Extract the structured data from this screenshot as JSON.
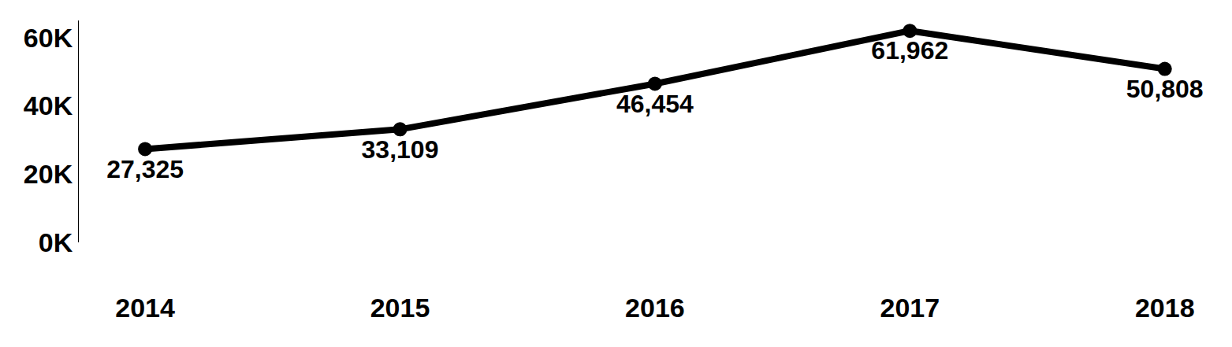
{
  "chart_data": {
    "type": "line",
    "categories": [
      "2014",
      "2015",
      "2016",
      "2017",
      "2018"
    ],
    "values": [
      27325,
      33109,
      46454,
      61962,
      50808
    ],
    "value_labels": [
      "27,325",
      "33,109",
      "46,454",
      "61,962",
      "50,808"
    ],
    "data_labels": true,
    "color": "#000000",
    "marker": "circle",
    "ylim": [
      0,
      65000
    ],
    "yticks": [
      {
        "value": 0,
        "label": "0K"
      },
      {
        "value": 20000,
        "label": "20K"
      },
      {
        "value": 40000,
        "label": "40K"
      },
      {
        "value": 60000,
        "label": "60K"
      }
    ],
    "grid": false
  }
}
